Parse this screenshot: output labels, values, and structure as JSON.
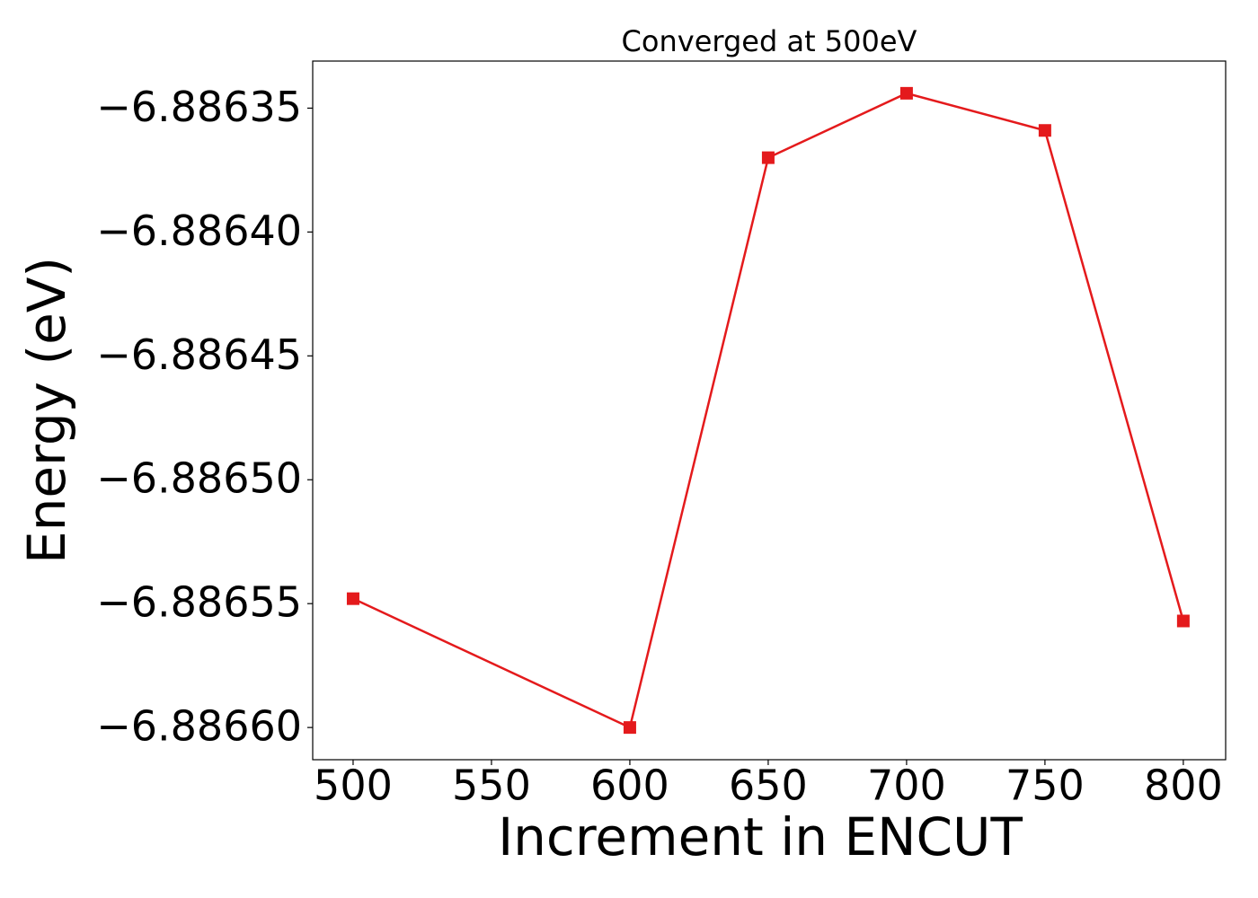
{
  "chart_data": {
    "type": "line",
    "title": "Converged at 500eV",
    "x_label": "Increment in ENCUT",
    "y_label": "Energy (eV)",
    "x": [
      500,
      600,
      650,
      700,
      750,
      800
    ],
    "series": [
      {
        "name": "Energy",
        "color": "#e41a1c",
        "marker": "square",
        "values": [
          -6.886548,
          -6.8866,
          -6.88637,
          -6.886344,
          -6.886359,
          -6.886557
        ]
      }
    ],
    "xlim": [
      485.4,
      815.3
    ],
    "xticks": [
      500,
      550,
      600,
      650,
      700,
      750,
      800
    ],
    "ylim": [
      -6.886613,
      -6.886331
    ],
    "yticks": [
      {
        "value": -6.88635,
        "label": "−6.88635"
      },
      {
        "value": -6.8864,
        "label": "−6.88640"
      },
      {
        "value": -6.88645,
        "label": "−6.88645"
      },
      {
        "value": -6.8865,
        "label": "−6.88650"
      },
      {
        "value": -6.88655,
        "label": "−6.88655"
      },
      {
        "value": -6.8866,
        "label": "−6.88660"
      }
    ],
    "grid": false
  }
}
